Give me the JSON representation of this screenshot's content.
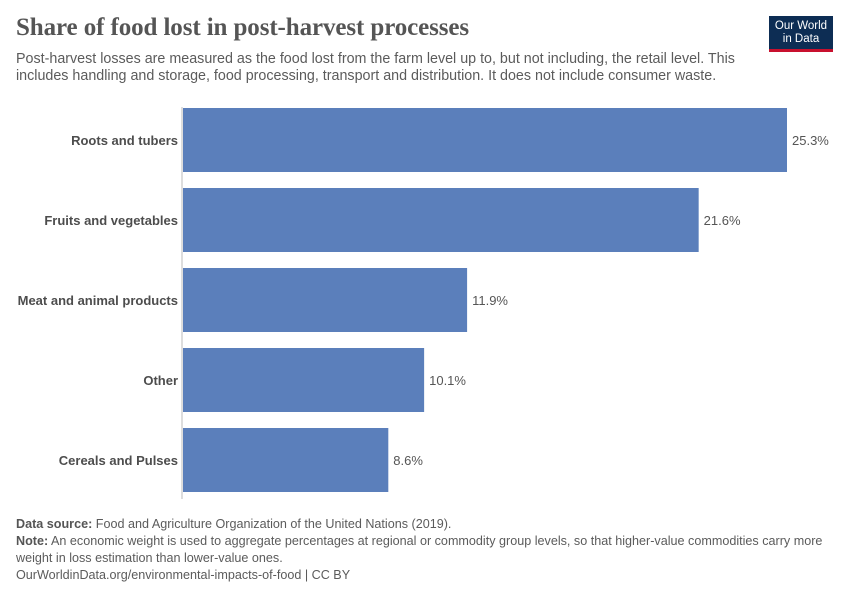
{
  "header": {
    "title": "Share of food lost in post-harvest processes",
    "subtitle": "Post-harvest losses are measured as the food lost from the farm level up to, but not including, the retail level. This includes handling and storage, food processing, transport and distribution. It does not include consumer waste.",
    "logo_line1": "Our World",
    "logo_line2": "in Data"
  },
  "chart_data": {
    "type": "bar",
    "orientation": "horizontal",
    "categories": [
      "Roots and tubers",
      "Fruits and vegetables",
      "Meat and animal products",
      "Other",
      "Cereals and Pulses"
    ],
    "values": [
      25.3,
      21.6,
      11.9,
      10.1,
      8.6
    ],
    "value_labels": [
      "25.3%",
      "21.6%",
      "11.9%",
      "10.1%",
      "8.6%"
    ],
    "unit": "%",
    "xlim": [
      0,
      25.3
    ],
    "grid": false,
    "legend": "none",
    "bar_color": "#5b7fbb"
  },
  "footer": {
    "source_label": "Data source:",
    "source_text": " Food and Agriculture Organization of the United Nations (2019).",
    "note_label": "Note:",
    "note_text": " An economic weight is used to aggregate percentages at regional or commodity group levels, so that higher-value commodities carry more weight in loss estimation than lower-value ones.",
    "url_text": "OurWorldinData.org/environmental-impacts-of-food | CC BY"
  }
}
